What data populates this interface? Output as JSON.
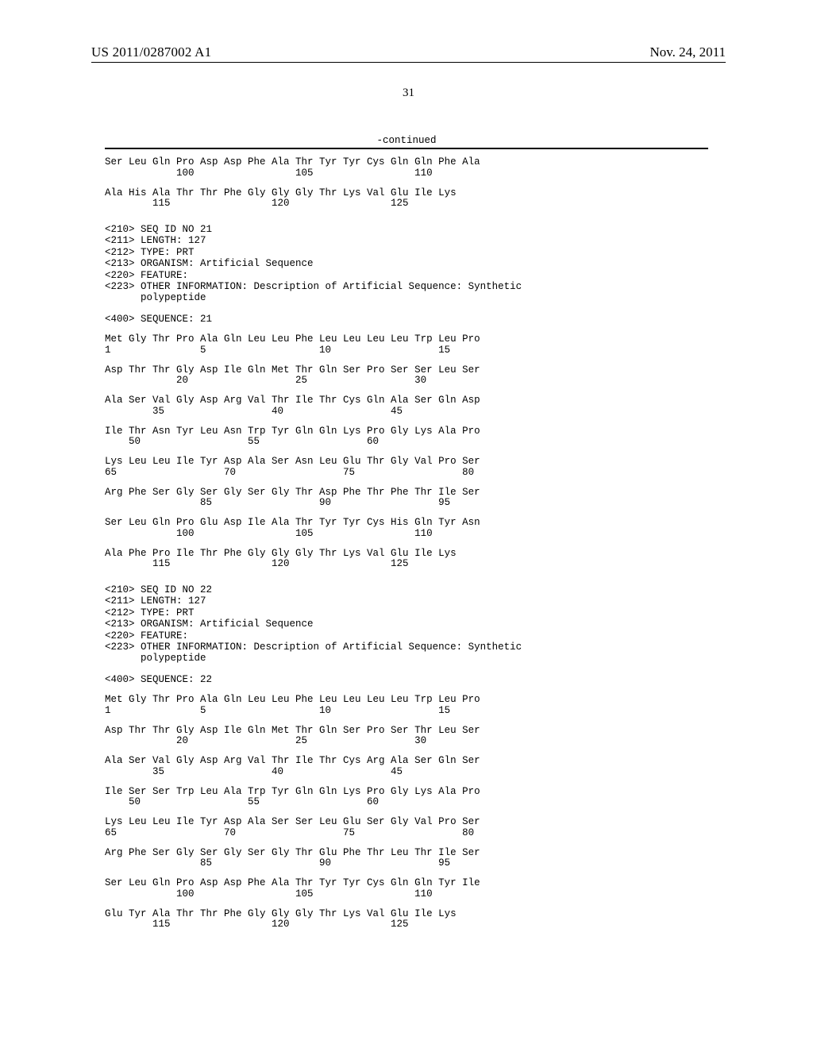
{
  "header": {
    "publication_number": "US 2011/0287002 A1",
    "publication_date": "Nov. 24, 2011",
    "page_number": "31"
  },
  "continued_label": "-continued",
  "tail_seq20": {
    "rows": [
      {
        "aa": "Ser Leu Gln Pro Asp Asp Phe Ala Thr Tyr Tyr Cys Gln Gln Phe Ala",
        "num": "            100                 105                 110"
      },
      {
        "aa": "Ala His Ala Thr Thr Phe Gly Gly Gly Thr Lys Val Glu Ile Lys",
        "num": "        115                 120                 125"
      }
    ]
  },
  "seq21": {
    "meta": [
      "<210> SEQ ID NO 21",
      "<211> LENGTH: 127",
      "<212> TYPE: PRT",
      "<213> ORGANISM: Artificial Sequence",
      "<220> FEATURE:",
      "<223> OTHER INFORMATION: Description of Artificial Sequence: Synthetic",
      "      polypeptide"
    ],
    "label": "<400> SEQUENCE: 21",
    "rows": [
      {
        "aa": "Met Gly Thr Pro Ala Gln Leu Leu Phe Leu Leu Leu Leu Trp Leu Pro",
        "num": "1               5                   10                  15"
      },
      {
        "aa": "Asp Thr Thr Gly Asp Ile Gln Met Thr Gln Ser Pro Ser Ser Leu Ser",
        "num": "            20                  25                  30"
      },
      {
        "aa": "Ala Ser Val Gly Asp Arg Val Thr Ile Thr Cys Gln Ala Ser Gln Asp",
        "num": "        35                  40                  45"
      },
      {
        "aa": "Ile Thr Asn Tyr Leu Asn Trp Tyr Gln Gln Lys Pro Gly Lys Ala Pro",
        "num": "    50                  55                  60"
      },
      {
        "aa": "Lys Leu Leu Ile Tyr Asp Ala Ser Asn Leu Glu Thr Gly Val Pro Ser",
        "num": "65                  70                  75                  80"
      },
      {
        "aa": "Arg Phe Ser Gly Ser Gly Ser Gly Thr Asp Phe Thr Phe Thr Ile Ser",
        "num": "                85                  90                  95"
      },
      {
        "aa": "Ser Leu Gln Pro Glu Asp Ile Ala Thr Tyr Tyr Cys His Gln Tyr Asn",
        "num": "            100                 105                 110"
      },
      {
        "aa": "Ala Phe Pro Ile Thr Phe Gly Gly Gly Thr Lys Val Glu Ile Lys",
        "num": "        115                 120                 125"
      }
    ]
  },
  "seq22": {
    "meta": [
      "<210> SEQ ID NO 22",
      "<211> LENGTH: 127",
      "<212> TYPE: PRT",
      "<213> ORGANISM: Artificial Sequence",
      "<220> FEATURE:",
      "<223> OTHER INFORMATION: Description of Artificial Sequence: Synthetic",
      "      polypeptide"
    ],
    "label": "<400> SEQUENCE: 22",
    "rows": [
      {
        "aa": "Met Gly Thr Pro Ala Gln Leu Leu Phe Leu Leu Leu Leu Trp Leu Pro",
        "num": "1               5                   10                  15"
      },
      {
        "aa": "Asp Thr Thr Gly Asp Ile Gln Met Thr Gln Ser Pro Ser Thr Leu Ser",
        "num": "            20                  25                  30"
      },
      {
        "aa": "Ala Ser Val Gly Asp Arg Val Thr Ile Thr Cys Arg Ala Ser Gln Ser",
        "num": "        35                  40                  45"
      },
      {
        "aa": "Ile Ser Ser Trp Leu Ala Trp Tyr Gln Gln Lys Pro Gly Lys Ala Pro",
        "num": "    50                  55                  60"
      },
      {
        "aa": "Lys Leu Leu Ile Tyr Asp Ala Ser Ser Leu Glu Ser Gly Val Pro Ser",
        "num": "65                  70                  75                  80"
      },
      {
        "aa": "Arg Phe Ser Gly Ser Gly Ser Gly Thr Glu Phe Thr Leu Thr Ile Ser",
        "num": "                85                  90                  95"
      },
      {
        "aa": "Ser Leu Gln Pro Asp Asp Phe Ala Thr Tyr Tyr Cys Gln Gln Tyr Ile",
        "num": "            100                 105                 110"
      },
      {
        "aa": "Glu Tyr Ala Thr Thr Phe Gly Gly Gly Thr Lys Val Glu Ile Lys",
        "num": "        115                 120                 125"
      }
    ]
  }
}
